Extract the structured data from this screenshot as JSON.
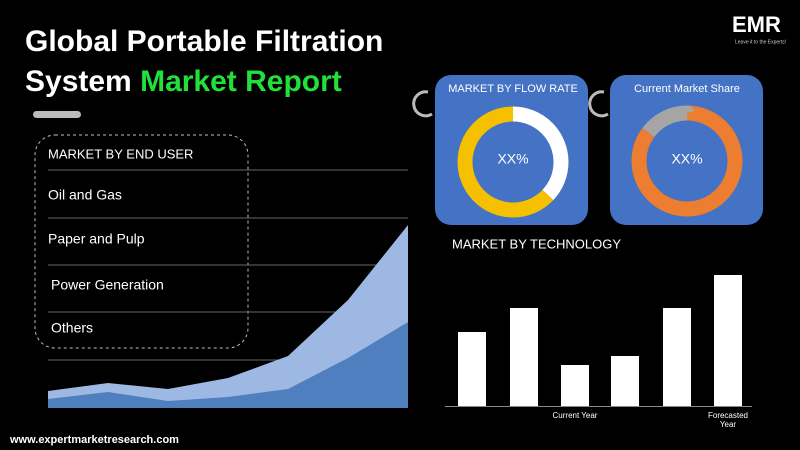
{
  "header": {
    "title_line1": "Global Portable Filtration",
    "title_line2": "System",
    "title_highlight": "Market Report",
    "logo": "EMR",
    "logo_tagline": "Leave it to the Experts!"
  },
  "end_user": {
    "title": "MARKET BY END USER",
    "items": [
      "Oil and Gas",
      "Paper and Pulp",
      "Power Generation",
      "Others"
    ]
  },
  "trend_chart": {
    "type": "area",
    "ylim": [
      0,
      190
    ],
    "series": [
      {
        "color": "#9db8e3",
        "values": [
          17,
          25,
          19,
          30,
          52,
          108,
          183
        ]
      },
      {
        "color": "#4f7fbf",
        "values": [
          9,
          16,
          7,
          11,
          19,
          50,
          86
        ]
      }
    ]
  },
  "flow_rate": {
    "type": "donut",
    "title": "MARKET BY FLOW RATE",
    "center_label": "XX%",
    "segments": [
      {
        "color": "#ffffff",
        "value": 37
      },
      {
        "color": "#f5c000",
        "value": 63
      }
    ]
  },
  "market_share": {
    "type": "donut",
    "title": "Current Market Share",
    "center_label": "XX%",
    "segments": [
      {
        "color": "#ed7d31",
        "value": 85
      },
      {
        "color": "#a5a5a5",
        "value": 15
      }
    ]
  },
  "technology": {
    "type": "bar",
    "title": "MARKET BY TECHNOLOGY",
    "color": "#ffffff",
    "ylim": [
      0,
      140
    ],
    "categories": [
      null,
      null,
      "Current Year",
      null,
      null,
      "Forecasted Year"
    ],
    "values": [
      74,
      98,
      41,
      50,
      98,
      131
    ]
  },
  "footer": {
    "url": "www.expertmarketresearch.com"
  }
}
